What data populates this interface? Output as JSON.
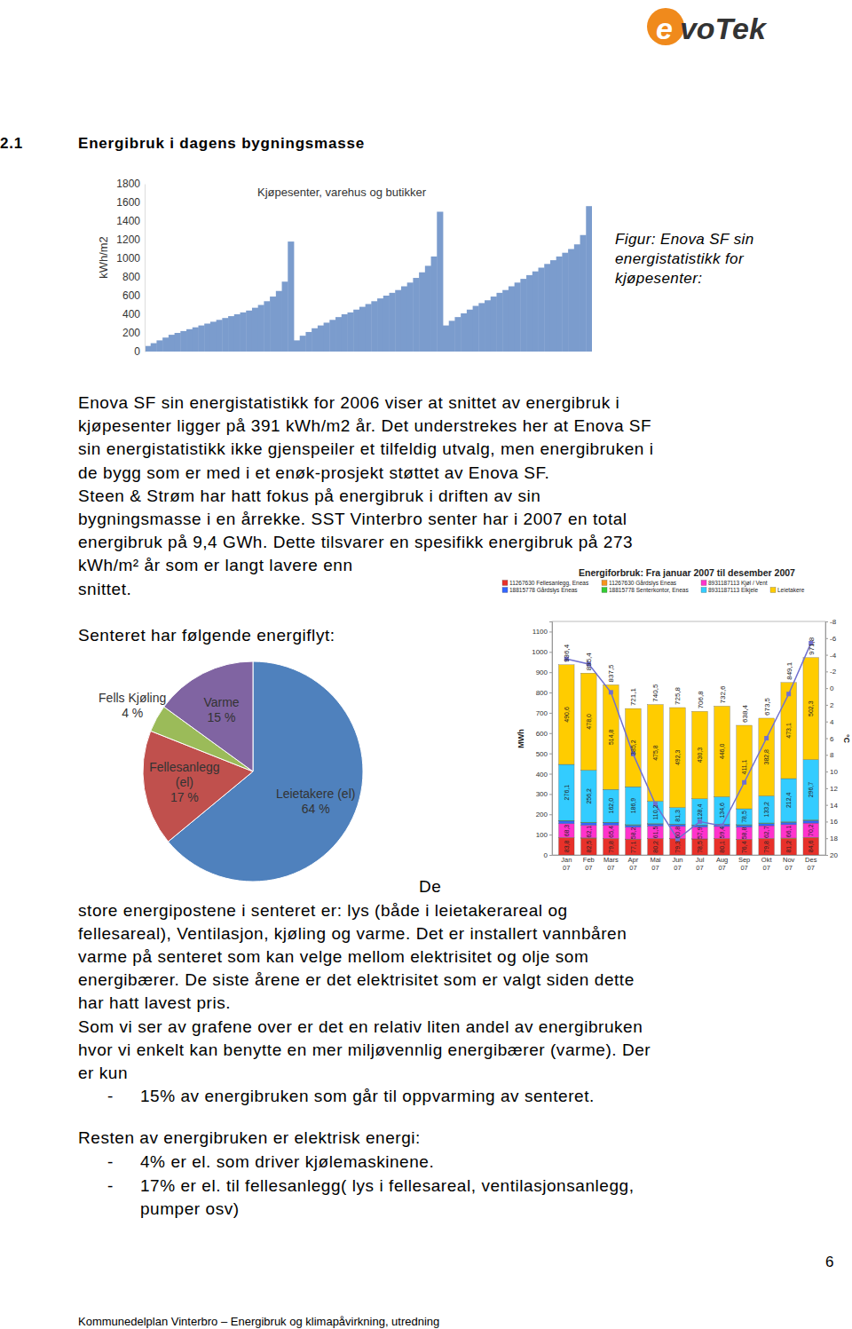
{
  "logo": "evoTek",
  "heading": {
    "number": "2.1",
    "title": "Energibruk i dagens bygningsmasse"
  },
  "figure_caption": [
    "Figur: Enova SF sin",
    "energistatistikk for",
    "kjøpesenter:"
  ],
  "paragraph_1": [
    "Enova SF sin energistatistikk for 2006 viser at snittet av energibruk i",
    "kjøpesenter ligger på 391 kWh/m2 år. Det understrekes her at Enova SF",
    "sin energistatistikk ikke gjenspeiler et tilfeldig utvalg, men energibruken i",
    "de bygg som er med i et enøk-prosjekt støttet av Enova SF.",
    "Steen & Strøm har hatt fokus på energibruk i driften av sin",
    "bygningsmasse i en årrekke. SST Vinterbro senter har i 2007 en total",
    "energibruk på 9,4 GWh. Dette tilsvarer en spesifikk energibruk på 273",
    "kWh/m² år som er langt lavere enn",
    "snittet."
  ],
  "intro_line": "Senteret har følgende energiflyt:",
  "paragraph_2": [
    "De",
    "store energipostene i senteret er: lys (både i leietakerareal og",
    "fellesareal), Ventilasjon, kjøling og varme. Det er installert vannbåren",
    "varme på senteret som kan velge mellom elektrisitet og olje som",
    "energibærer. De siste årene er det elektrisitet som er valgt siden dette",
    "har hatt lavest pris.",
    "Som vi ser av grafene over er det en relativ liten andel av energibruken",
    "hvor vi enkelt kan benytte en mer miljøvennlig energibærer (varme). Der",
    "er kun"
  ],
  "list_1": [
    {
      "bullet": "-",
      "text": [
        "15% av energibruken som går til oppvarming av senteret."
      ]
    }
  ],
  "paragraph_3": "Resten av energibruken er elektrisk energi:",
  "list_2": [
    {
      "bullet": "-",
      "text": [
        "4% er el. som driver kjølemaskinene."
      ]
    },
    {
      "bullet": "-",
      "text": [
        "17% er el. til fellesanlegg( lys i fellesareal, ventilasjonsanlegg,",
        "pumper osv)"
      ]
    }
  ],
  "chart_data": [
    {
      "type": "bar",
      "title": "Kjøpesenter, varehus og butikker",
      "ylabel": "kWh/m2",
      "categories": [
        null,
        null,
        null,
        null,
        null,
        null,
        null,
        null,
        null,
        null,
        null,
        null,
        null,
        null,
        null,
        null,
        null,
        null,
        null,
        null,
        null,
        null,
        null,
        null,
        null,
        null,
        null,
        null,
        null,
        null,
        null,
        null,
        null,
        null,
        null,
        null,
        null,
        null,
        null,
        null,
        null,
        null,
        null,
        null,
        null,
        null,
        null,
        null,
        null,
        null,
        null,
        null,
        null,
        null,
        null,
        null,
        null,
        null,
        null,
        null,
        null,
        null,
        null,
        null,
        null,
        null,
        null,
        null,
        null,
        null,
        null,
        null,
        null,
        null,
        null
      ],
      "values": [
        60,
        90,
        120,
        150,
        180,
        200,
        220,
        240,
        260,
        280,
        300,
        320,
        340,
        360,
        380,
        400,
        420,
        440,
        470,
        500,
        540,
        590,
        650,
        750,
        1180,
        120,
        170,
        210,
        250,
        280,
        310,
        340,
        370,
        400,
        420,
        450,
        480,
        510,
        540,
        570,
        600,
        630,
        660,
        700,
        740,
        790,
        850,
        920,
        1020,
        1500,
        280,
        330,
        370,
        410,
        450,
        490,
        520,
        550,
        590,
        630,
        660,
        700,
        740,
        780,
        820,
        860,
        900,
        940,
        980,
        1020,
        1060,
        1100,
        1150,
        1250,
        1560
      ],
      "color": "#7b9ccd",
      "ylim": [
        0,
        1800
      ],
      "yticks": [
        0,
        200,
        400,
        600,
        800,
        1000,
        1200,
        1400,
        1600,
        1800
      ],
      "tick_labels": "y"
    },
    {
      "type": "pie",
      "categories": [
        "Leietakere (el)",
        "Fellesanlegg\n(el)",
        "Fells Kjøling",
        "Varme"
      ],
      "values": [
        64,
        17,
        4,
        15
      ],
      "value_labels": [
        "64 %",
        "17 %",
        "4 %",
        "15 %"
      ],
      "colors": [
        "#4f81bd",
        "#c0504d",
        "#9bbb59",
        "#8064a2"
      ]
    },
    {
      "type": "bar",
      "stacked": true,
      "title": "Energiforbruk: Fra januar 2007 til desember 2007",
      "ylabel": "MWh",
      "y2label": "°C",
      "legend": "top",
      "categories": [
        "Jan 07",
        "Feb 07",
        "Mars 07",
        "Apr 07",
        "Mai 07",
        "Jun 07",
        "Jul 07",
        "Aug 07",
        "Sep 07",
        "Okt 07",
        "Nov 07",
        "Des 07"
      ],
      "ylim": [
        0,
        1150
      ],
      "yticks": [
        0,
        100,
        200,
        300,
        400,
        500,
        600,
        700,
        800,
        900,
        1000,
        1100
      ],
      "y2lim": [
        20,
        -8
      ],
      "y2ticks": [
        -8,
        -6,
        -4,
        -2,
        0,
        2,
        4,
        6,
        8,
        10,
        12,
        14,
        16,
        18,
        20
      ],
      "totals": [
        936.4,
        895.4,
        837.5,
        721.1,
        740.5,
        725.8,
        706.8,
        732.6,
        638.4,
        673.5,
        849.1,
        971.8
      ],
      "total_labels": [
        "936,4",
        "895,4",
        "837,5",
        "721,1",
        "740,5",
        "725,8",
        "706,8",
        "732,6",
        "638,4",
        "673,5",
        "849,1",
        "971,8"
      ],
      "series": [
        {
          "name": "11267630 Fellesanlegg, Eneas",
          "color": "#e8312a",
          "data_labels": true,
          "values": [
            83.8,
            82.5,
            79.8,
            77.1,
            80.2,
            79.3,
            78.5,
            80.1,
            76.4,
            79.8,
            81.2,
            84.6
          ],
          "value_labels": [
            "83,8",
            "82,5",
            "79,8",
            "77,1",
            "80,2",
            "79,3",
            "78,5",
            "80,1",
            "76,4",
            "79,8",
            "81,2",
            "84,6"
          ]
        },
        {
          "name": "11267630 Gårdslys Eneas",
          "color": "#f7941d",
          "data_labels": false,
          "values": [
            2.1,
            1.9,
            1.6,
            1.2,
            0.8,
            0.6,
            0.7,
            0.9,
            1.3,
            1.6,
            1.9,
            2.2
          ]
        },
        {
          "name": "8931187113 Kjøl / Vent",
          "color": "#ff33cc",
          "data_labels": true,
          "values": [
            68.3,
            62.1,
            65.4,
            58.2,
            61.5,
            60.8,
            57.9,
            59.4,
            58.8,
            62.7,
            66.1,
            70.2
          ],
          "value_labels": [
            "68,3",
            "62,1",
            "65,4",
            "58,2",
            "61,5",
            "60,8",
            "57,9",
            "59,4",
            "58,8",
            "62,7",
            "66,1",
            "70,2"
          ]
        },
        {
          "name": "18815778 Gårdslys Eneas",
          "color": "#3366ff",
          "data_labels": false,
          "values": [
            12.4,
            11.8,
            11.2,
            10.1,
            9.8,
            9.5,
            9.2,
            9.6,
            10.0,
            10.8,
            11.5,
            12.6
          ]
        },
        {
          "name": "18815778 Senterkontor, Eneas",
          "color": "#33cc33",
          "data_labels": false,
          "values": [
            3.1,
            2.9,
            2.7,
            2.4,
            2.2,
            2.0,
            1.8,
            2.0,
            2.3,
            2.6,
            2.9,
            3.2
          ]
        },
        {
          "name": "8931187113 Elkjele",
          "color": "#33ccff",
          "data_labels": true,
          "values": [
            276.1,
            256.2,
            162.0,
            186.9,
            110.2,
            81.3,
            128.4,
            134.6,
            78.5,
            133.2,
            212.4,
            296.7
          ],
          "value_labels": [
            "276,1",
            "256,2",
            "162,0",
            "186,9",
            "110,2",
            "81,3",
            "128,4",
            "134,6",
            "78,5",
            "133,2",
            "212,4",
            "296,7"
          ]
        },
        {
          "name": "Leietakere",
          "color": "#ffcc00",
          "data_labels": true,
          "values": [
            490.6,
            478.0,
            514.8,
            385.2,
            475.8,
            492.3,
            430.3,
            446.0,
            411.1,
            382.8,
            473.1,
            502.3
          ],
          "value_labels": [
            "490,6",
            "478,0",
            "514,8",
            "385,2",
            "475,8",
            "492,3",
            "430,3",
            "446,0",
            "411,1",
            "382,8",
            "473,1",
            "502,3"
          ]
        },
        {
          "type": "line",
          "axis": "y2",
          "color": "#7070d0",
          "marker": "square",
          "line_style": "solid",
          "values": [
            -3.5,
            -2.9,
            0.5,
            7.9,
            13.9,
            18.1,
            16.0,
            16.5,
            11.3,
            6.0,
            0.7,
            -5.4
          ]
        }
      ]
    }
  ],
  "page_number": "6",
  "footer": "Kommunedelplan Vinterbro – Energibruk og klimapåvirkning, utredning"
}
